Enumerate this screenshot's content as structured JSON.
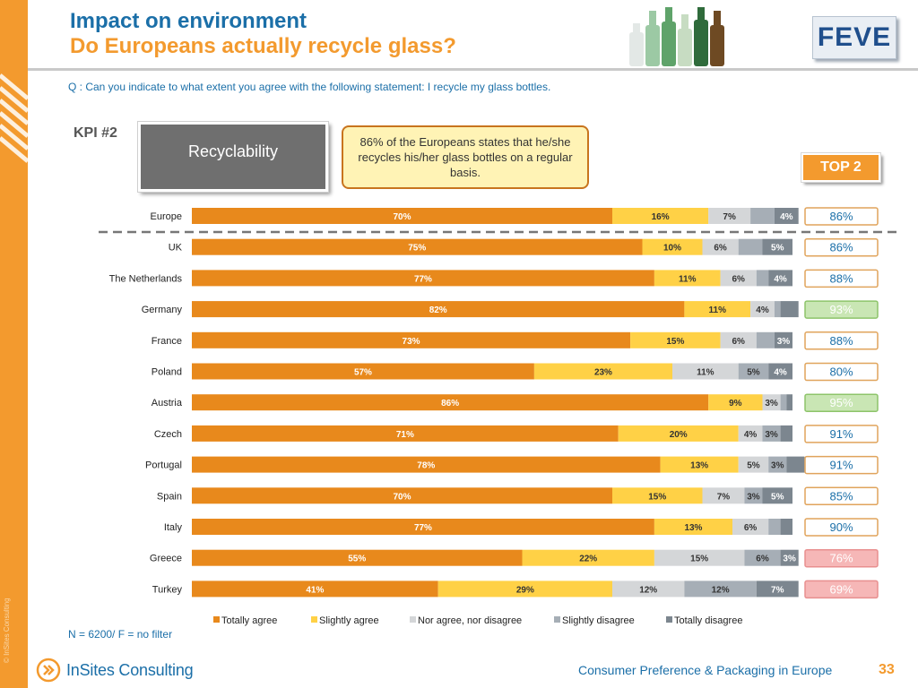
{
  "header": {
    "title_line1": "Impact on environment",
    "title_line2": "Do Europeans actually recycle glass?",
    "logo_text": "FEVE"
  },
  "question": "Q : Can you indicate to what extent you agree with the following statement: I recycle my glass bottles.",
  "kpi_label": "KPI #2",
  "kpi_box": "Recyclability",
  "callout": "86% of the Europeans states that he/she recycles his/her glass bottles on a regular basis.",
  "top2_badge": "TOP 2",
  "footer": {
    "sample": "N = 6200/ F = no filter",
    "brand": "InSites Consulting",
    "deck_title": "Consumer Preference & Packaging in Europe",
    "page_number": "33",
    "copyright": "© InSites Consulting"
  },
  "colors": {
    "totally_agree": "#E8891C",
    "slightly_agree": "#FFD146",
    "neither": "#D4D6D8",
    "slightly_disagree": "#A6AEB6",
    "totally_disagree": "#7C868F",
    "accent_orange": "#F39A2E",
    "accent_blue": "#1B6FA8",
    "top2_green_bg": "#C9E6B4",
    "top2_red_bg": "#F6B7B7"
  },
  "chart_data": {
    "type": "bar",
    "orientation": "horizontal-stacked",
    "xlim": [
      0,
      100
    ],
    "categories": [
      "Europe",
      "UK",
      "The Netherlands",
      "Germany",
      "France",
      "Poland",
      "Austria",
      "Czech",
      "Portugal",
      "Spain",
      "Italy",
      "Greece",
      "Turkey"
    ],
    "series": [
      {
        "name": "Totally agree",
        "values": [
          70,
          75,
          77,
          82,
          73,
          57,
          86,
          71,
          78,
          70,
          77,
          55,
          41
        ]
      },
      {
        "name": "Slightly agree",
        "values": [
          16,
          10,
          11,
          11,
          15,
          23,
          9,
          20,
          13,
          15,
          13,
          22,
          29
        ]
      },
      {
        "name": "Nor agree, nor disagree",
        "values": [
          7,
          6,
          6,
          4,
          6,
          11,
          3,
          4,
          5,
          7,
          6,
          15,
          12
        ]
      },
      {
        "name": "Slightly disagree",
        "values": [
          4,
          4,
          2,
          1,
          3,
          5,
          1,
          3,
          3,
          3,
          2,
          6,
          12
        ]
      },
      {
        "name": "Totally disagree",
        "values": [
          4,
          5,
          4,
          3,
          3,
          4,
          1,
          2,
          3,
          5,
          2,
          3,
          7
        ]
      }
    ],
    "data_labels": [
      [
        "70%",
        "16%",
        "7%",
        "",
        "4%"
      ],
      [
        "75%",
        "10%",
        "6%",
        "",
        "5%"
      ],
      [
        "77%",
        "11%",
        "6%",
        "",
        "4%"
      ],
      [
        "82%",
        "11%",
        "4%",
        "",
        ""
      ],
      [
        "73%",
        "15%",
        "6%",
        "",
        "3%"
      ],
      [
        "57%",
        "23%",
        "11%",
        "5%",
        "4%"
      ],
      [
        "86%",
        "9%",
        "3%",
        "",
        ""
      ],
      [
        "71%",
        "20%",
        "4%",
        "3%",
        ""
      ],
      [
        "78%",
        "13%",
        "5%",
        "3%",
        ""
      ],
      [
        "70%",
        "15%",
        "7%",
        "3%",
        "5%"
      ],
      [
        "77%",
        "13%",
        "6%",
        "",
        ""
      ],
      [
        "55%",
        "22%",
        "15%",
        "6%",
        "3%"
      ],
      [
        "41%",
        "29%",
        "12%",
        "12%",
        "7%"
      ]
    ],
    "top2": [
      "86%",
      "86%",
      "88%",
      "93%",
      "88%",
      "80%",
      "95%",
      "91%",
      "91%",
      "85%",
      "90%",
      "76%",
      "69%"
    ],
    "top2_highlight": [
      "",
      "",
      "",
      "high",
      "",
      "",
      "high",
      "",
      "",
      "",
      "",
      "low",
      "low"
    ],
    "legend": [
      "Totally agree",
      "Slightly agree",
      "Nor agree, nor disagree",
      "Slightly disagree",
      "Totally disagree"
    ],
    "legend_position": "bottom",
    "grid": false
  }
}
